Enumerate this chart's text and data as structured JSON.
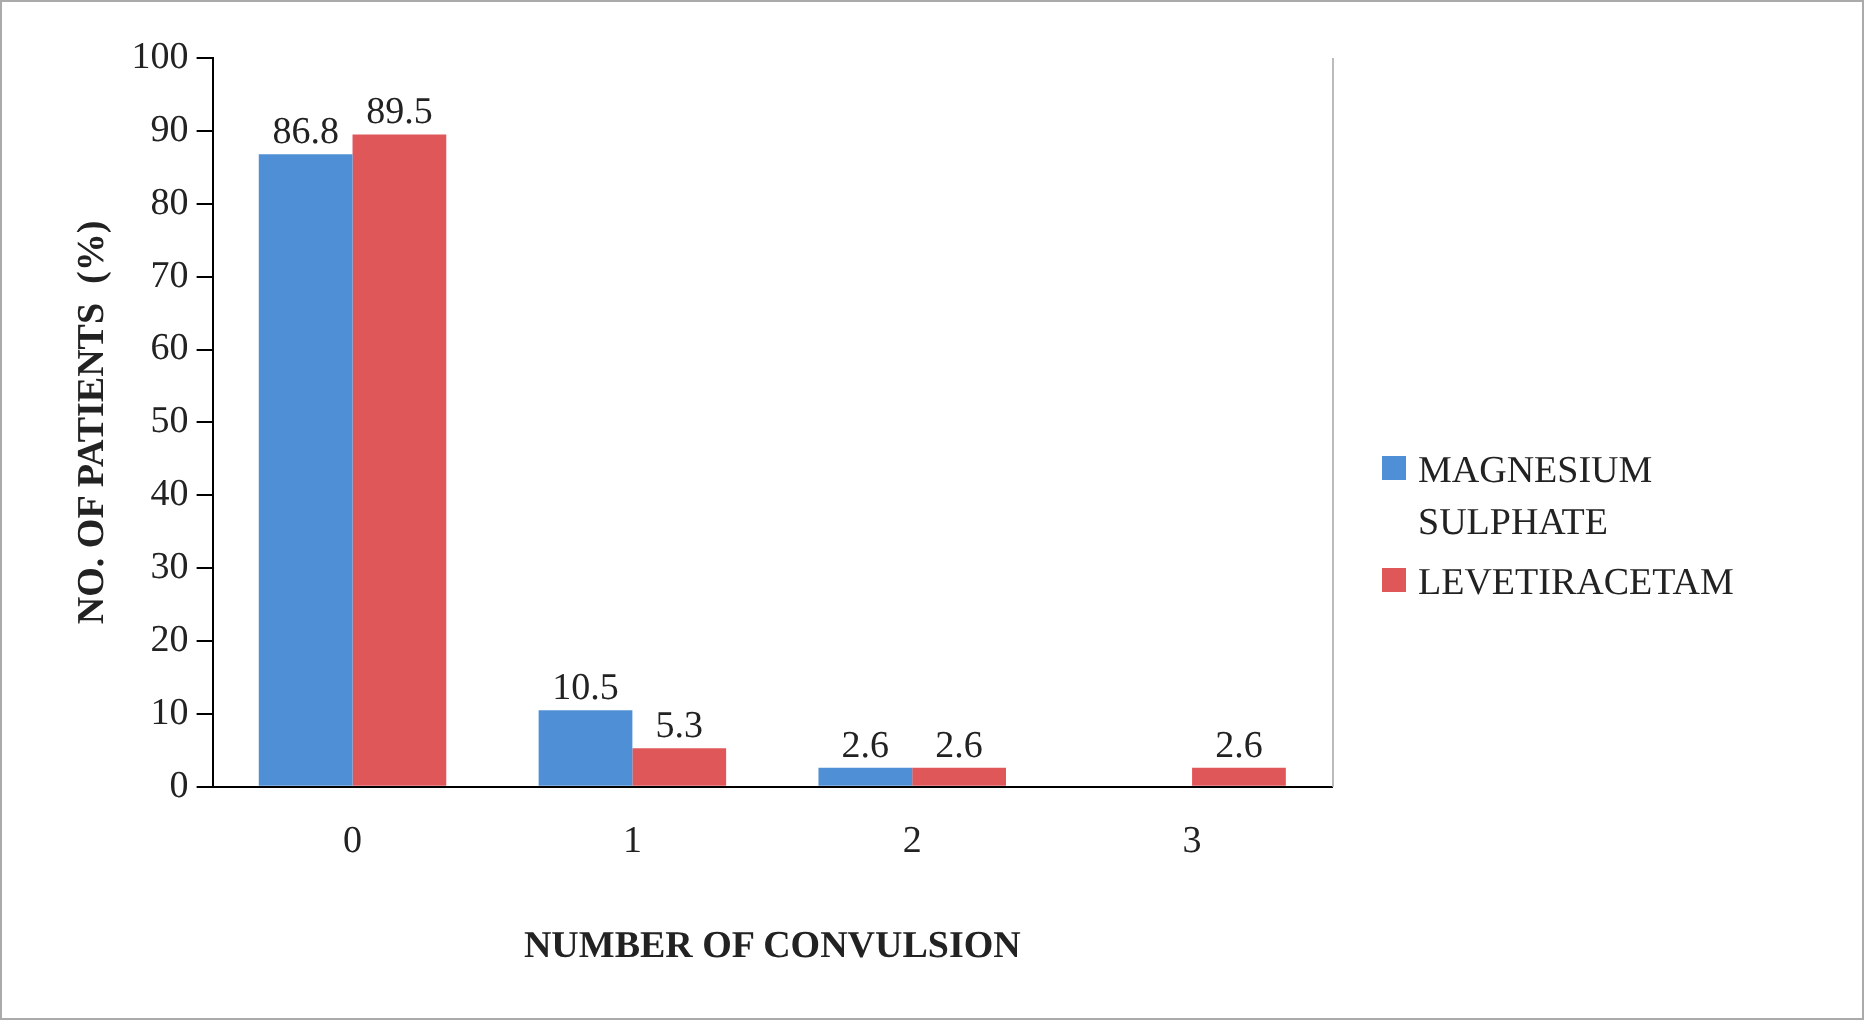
{
  "chart_data": {
    "type": "bar",
    "xlabel": "NUMBER OF CONVULSION",
    "ylabel": "NO. OF PATIENTS  (%)",
    "categories": [
      "0",
      "1",
      "2",
      "3"
    ],
    "series": [
      {
        "name": "MAGNESIUM SULPHATE",
        "color": "#4f8fd6",
        "values": [
          86.8,
          10.5,
          2.6,
          0
        ],
        "value_labels": [
          "86.8",
          "10.5",
          "2.6",
          null
        ]
      },
      {
        "name": "LEVETIRACETAM",
        "color": "#e0575a",
        "values": [
          89.5,
          5.3,
          2.6,
          2.6
        ],
        "value_labels": [
          "89.5",
          "5.3",
          "2.6",
          "2.6"
        ]
      }
    ],
    "ylim": [
      0,
      100
    ],
    "yticks": [
      0,
      10,
      20,
      30,
      40,
      50,
      60,
      70,
      80,
      90,
      100
    ],
    "grid": false,
    "legend": "right"
  }
}
